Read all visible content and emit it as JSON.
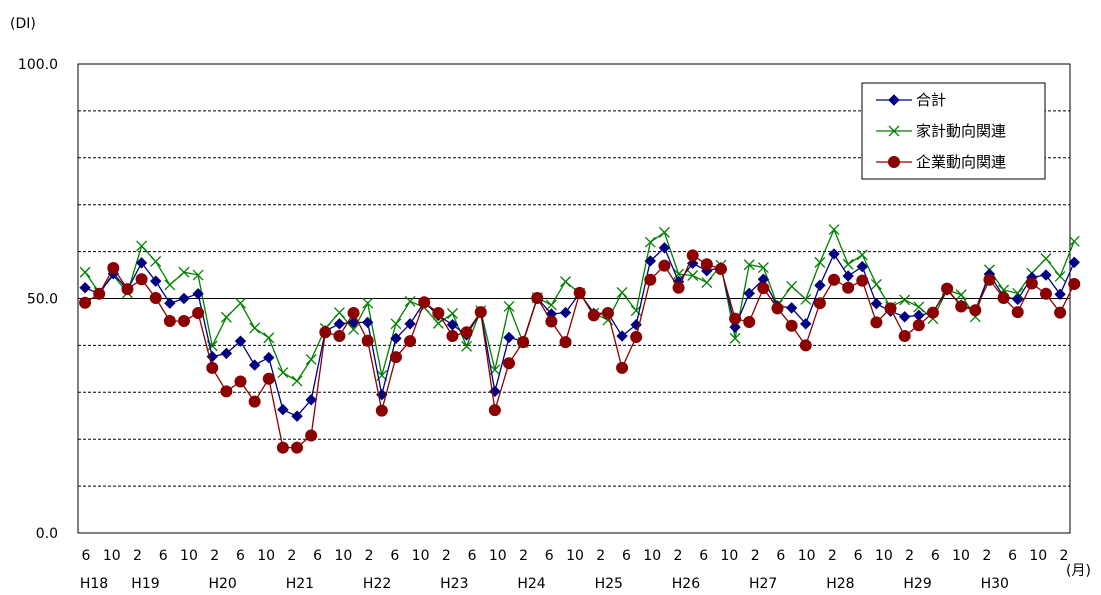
{
  "chart_data": {
    "type": "line",
    "y_unit_label": "(DI)",
    "x_unit_label": "(月)",
    "ylim": [
      0,
      100
    ],
    "y_ticks": [
      "0.0",
      "50.0",
      "100.0"
    ],
    "y_gridlines": [
      10,
      20,
      30,
      40,
      60,
      70,
      80,
      90
    ],
    "y_reference_line": 50,
    "grid": true,
    "legend_position": "top-right",
    "month_ticks": [
      "6",
      "10",
      "2",
      "6",
      "10",
      "2",
      "6",
      "10",
      "2",
      "6",
      "10",
      "2",
      "6",
      "10",
      "2",
      "6",
      "10",
      "2",
      "6",
      "10",
      "2",
      "6",
      "10",
      "2",
      "6",
      "10",
      "2",
      "6",
      "10",
      "2",
      "6",
      "10",
      "2",
      "6",
      "10",
      "2",
      "6",
      "10",
      "2"
    ],
    "year_labels": [
      {
        "label": "H18",
        "index": 0
      },
      {
        "label": "H19",
        "index": 2
      },
      {
        "label": "H20",
        "index": 5
      },
      {
        "label": "H21",
        "index": 8
      },
      {
        "label": "H22",
        "index": 11
      },
      {
        "label": "H23",
        "index": 14
      },
      {
        "label": "H24",
        "index": 17
      },
      {
        "label": "H25",
        "index": 20
      },
      {
        "label": "H26",
        "index": 23
      },
      {
        "label": "H27",
        "index": 26
      },
      {
        "label": "H28",
        "index": 29
      },
      {
        "label": "H29",
        "index": 32
      },
      {
        "label": "H30",
        "index": 35
      }
    ],
    "x_start_month_index": 0,
    "x_end_month_index": 141,
    "series": [
      {
        "name": "合計",
        "color": "#000080",
        "marker": "diamond",
        "values": [
          52.3,
          51.0,
          55.3,
          51.9,
          57.6,
          53.7,
          49.0,
          50.0,
          51.0,
          37.6,
          38.3,
          40.9,
          35.8,
          37.4,
          26.3,
          24.9,
          28.4,
          43.1,
          44.6,
          44.9,
          44.9,
          29.5,
          41.5,
          44.6,
          49.2,
          46.4,
          44.4,
          42.2,
          47.1,
          30.2,
          41.7,
          40.9,
          50.1,
          46.7,
          47.0,
          51.1,
          46.8,
          46.9,
          42.0,
          44.4,
          58.0,
          60.8,
          53.6,
          57.5,
          55.9,
          56.6,
          43.9,
          51.1,
          54.1,
          48.4,
          48.0,
          44.6,
          52.8,
          59.5,
          54.8,
          56.8,
          48.9,
          47.3,
          46.1,
          46.4,
          47.0,
          51.8,
          48.6,
          47.5,
          55.2,
          50.4,
          49.8,
          54.5,
          55.0,
          50.9,
          57.7
        ]
      },
      {
        "name": "家計動向関連",
        "color": "#008000",
        "marker": "x",
        "values": [
          55.6,
          51.3,
          54.9,
          51.2,
          61.2,
          57.9,
          52.9,
          55.6,
          55.0,
          39.9,
          46.0,
          49.0,
          43.7,
          41.6,
          34.2,
          32.4,
          37.0,
          43.6,
          47.0,
          43.4,
          49.0,
          33.6,
          44.6,
          49.4,
          48.1,
          44.7,
          46.8,
          39.8,
          47.4,
          34.8,
          48.3,
          40.6,
          50.2,
          48.6,
          53.6,
          51.1,
          46.9,
          45.4,
          51.3,
          47.4,
          62.0,
          64.1,
          55.2,
          54.9,
          53.4,
          57.1,
          41.5,
          57.2,
          56.6,
          48.6,
          52.6,
          49.8,
          57.7,
          64.7,
          57.3,
          59.3,
          53.0,
          48.2,
          49.7,
          48.2,
          45.7,
          51.8,
          50.8,
          46.1,
          56.1,
          51.8,
          51.1,
          55.4,
          58.5,
          54.7,
          62.2
        ]
      },
      {
        "name": "企業動向関連",
        "color": "#8B0000",
        "marker": "circle",
        "values": [
          49.1,
          51.0,
          56.5,
          52.0,
          54.1,
          50.1,
          45.2,
          45.2,
          46.9,
          35.2,
          30.2,
          32.3,
          28.0,
          32.9,
          18.2,
          18.2,
          20.8,
          42.8,
          42.0,
          46.9,
          41.0,
          26.1,
          37.5,
          40.9,
          49.2,
          46.9,
          42.0,
          42.8,
          47.1,
          26.2,
          36.2,
          40.7,
          50.1,
          45.1,
          40.7,
          51.2,
          46.4,
          46.9,
          35.2,
          41.8,
          54.0,
          57.0,
          52.3,
          59.2,
          57.3,
          56.3,
          45.7,
          45.0,
          52.2,
          47.9,
          44.2,
          40.0,
          49.0,
          54.0,
          52.3,
          53.8,
          44.9,
          47.9,
          42.0,
          44.3,
          47.0,
          52.1,
          48.3,
          47.5,
          54.0,
          50.1,
          47.1,
          53.2,
          51.0,
          47.0,
          53.1
        ]
      }
    ]
  }
}
